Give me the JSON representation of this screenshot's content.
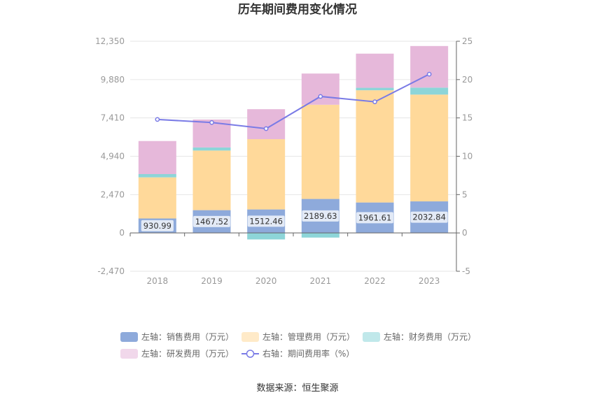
{
  "chart_data": {
    "type": "bar",
    "title": "历年期间费用变化情况",
    "categories": [
      "2018",
      "2019",
      "2020",
      "2021",
      "2022",
      "2023"
    ],
    "y_left": {
      "ticks": [
        "12,350",
        "9,880",
        "7,410",
        "4,940",
        "2,470",
        "0",
        "-2,470"
      ],
      "min": -2470,
      "max": 12350
    },
    "y_right": {
      "ticks": [
        "25",
        "20",
        "15",
        "10",
        "5",
        "0",
        "-5"
      ],
      "min": -5,
      "max": 25
    },
    "series": [
      {
        "name": "左轴：销售费用（万元）",
        "axis": "left",
        "stack": true,
        "color": "#8eaadb",
        "values": [
          930.99,
          1467.52,
          1512.46,
          2189.63,
          1961.61,
          2032.84
        ],
        "labels": [
          "930.99",
          "1467.52",
          "1512.46",
          "2189.63",
          "1961.61",
          "2032.84"
        ]
      },
      {
        "name": "左轴：管理费用（万元）",
        "axis": "left",
        "stack": true,
        "color": "#ffd99a",
        "values": [
          2650,
          3840,
          4530,
          6070,
          7230,
          6880
        ]
      },
      {
        "name": "左轴：财务费用（万元）",
        "axis": "left",
        "stack": true,
        "color": "#8dd5d8",
        "values": [
          210,
          200,
          -420,
          -300,
          160,
          450
        ]
      },
      {
        "name": "左轴：研发费用（万元）",
        "axis": "left",
        "stack": true,
        "color": "#e6b8da",
        "values": [
          2130,
          1800,
          1930,
          2010,
          2200,
          2680
        ]
      },
      {
        "name": "右轴：期间费用率（%）",
        "axis": "right",
        "type": "line",
        "color": "#7a7be6",
        "values": [
          14.8,
          14.4,
          13.6,
          17.8,
          17.1,
          20.7
        ]
      }
    ],
    "legend_position": "bottom",
    "grid": true
  },
  "source": "数据来源：恒生聚源"
}
